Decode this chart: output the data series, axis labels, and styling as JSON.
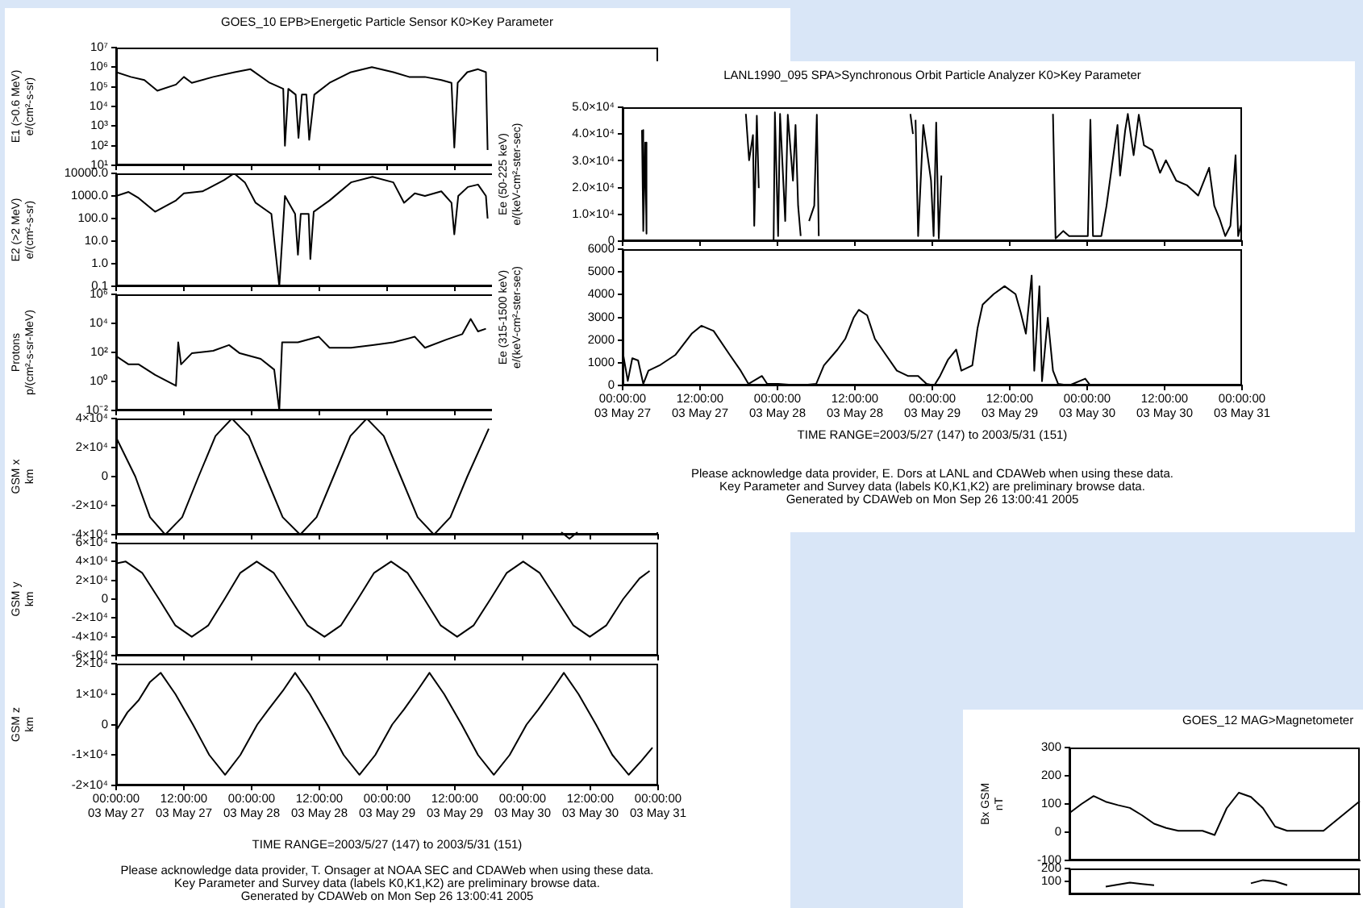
{
  "chart_data": [
    {
      "type": "line",
      "title": "GOES_10   EPB>Energetic Particle Sensor   K0>Key Parameter",
      "ylabel": "E1 (>0.6 MeV)\ne/(cm²-s-sr)",
      "log": "y",
      "tick_labels": "y",
      "xlim": [
        "2003-05-27T00:00",
        "2003-05-31T00:00"
      ],
      "xticks": [
        {
          "value": "2003-05-27T00:00",
          "label": null
        },
        {
          "value": "2003-05-27T12:00",
          "label": null
        },
        {
          "value": "2003-05-28T00:00",
          "label": null
        },
        {
          "value": "2003-05-28T12:00",
          "label": null
        },
        {
          "value": "2003-05-29T00:00",
          "label": null
        },
        {
          "value": "2003-05-29T12:00",
          "label": null
        },
        {
          "value": "2003-05-30T00:00",
          "label": null
        },
        {
          "value": "2003-05-30T12:00",
          "label": null
        },
        {
          "value": "2003-05-31T00:00",
          "label": null
        }
      ],
      "ylim": [
        10,
        10000000
      ],
      "yticks": [
        {
          "value": 10,
          "label": "10¹"
        },
        {
          "value": 100,
          "label": "10²"
        },
        {
          "value": 1000,
          "label": "10³"
        },
        {
          "value": 10000,
          "label": "10⁴"
        },
        {
          "value": 100000,
          "label": "10⁵"
        },
        {
          "value": 1000000,
          "label": "10⁶"
        },
        {
          "value": 10000000,
          "label": "10⁷"
        }
      ],
      "series": [
        {
          "color": "#000000",
          "x": [
            "2003-05-27T00:00",
            "2003-05-27T02:36",
            "2003-05-27T05:00",
            "2003-05-27T07:18",
            "2003-05-27T10:36",
            "2003-05-27T12:00",
            "2003-05-27T13:24",
            "2003-05-27T17:12",
            "2003-05-27T21:00",
            "2003-05-27T23:48",
            "2003-05-28T03:12",
            "2003-05-28T05:36",
            "2003-05-28T05:54",
            "2003-05-28T06:30",
            "2003-05-28T07:48",
            "2003-05-28T08:18",
            "2003-05-28T08:54",
            "2003-05-28T09:42",
            "2003-05-28T10:12",
            "2003-05-28T11:06",
            "2003-05-28T13:48",
            "2003-05-28T17:36",
            "2003-05-28T21:18",
            "2003-05-29T01:06",
            "2003-05-29T03:54",
            "2003-05-29T06:42",
            "2003-05-29T09:36",
            "2003-05-29T11:24",
            "2003-05-29T11:54",
            "2003-05-29T12:30",
            "2003-05-29T14:12",
            "2003-05-29T16:06",
            "2003-05-29T17:30",
            "2003-05-29T17:48"
          ],
          "values": [
            560000,
            320000,
            220000,
            63000,
            130000,
            320000,
            160000,
            320000,
            560000,
            790000,
            160000,
            79000,
            100,
            79000,
            40000,
            250,
            40000,
            40000,
            200,
            40000,
            160000,
            560000,
            1000000,
            560000,
            320000,
            320000,
            220000,
            160000,
            80,
            160000,
            560000,
            790000,
            560000,
            60
          ]
        }
      ]
    },
    {
      "type": "line",
      "ylabel": "E2 (>2 MeV)\ne/(cm²-s-sr)",
      "log": "y",
      "tick_labels": "y",
      "xlim": [
        "2003-05-27T00:00",
        "2003-05-31T00:00"
      ],
      "xticks": [
        {
          "value": "2003-05-27T00:00",
          "label": null
        },
        {
          "value": "2003-05-27T12:00",
          "label": null
        },
        {
          "value": "2003-05-28T00:00",
          "label": null
        },
        {
          "value": "2003-05-28T12:00",
          "label": null
        },
        {
          "value": "2003-05-29T00:00",
          "label": null
        },
        {
          "value": "2003-05-29T12:00",
          "label": null
        },
        {
          "value": "2003-05-30T00:00",
          "label": null
        },
        {
          "value": "2003-05-30T12:00",
          "label": null
        },
        {
          "value": "2003-05-31T00:00",
          "label": null
        }
      ],
      "ylim": [
        0.1,
        10000
      ],
      "yticks": [
        {
          "value": 0.1,
          "label": "0.1"
        },
        {
          "value": 1,
          "label": "1.0"
        },
        {
          "value": 10,
          "label": "10.0"
        },
        {
          "value": 100,
          "label": "100.0"
        },
        {
          "value": 1000,
          "label": "1000.0"
        },
        {
          "value": 10000,
          "label": "10000.0"
        }
      ],
      "series": [
        {
          "color": "#000000",
          "x": [
            "2003-05-27T00:00",
            "2003-05-27T02:12",
            "2003-05-27T04:00",
            "2003-05-27T06:54",
            "2003-05-27T10:36",
            "2003-05-27T12:00",
            "2003-05-27T15:18",
            "2003-05-27T19:06",
            "2003-05-27T20:54",
            "2003-05-27T22:48",
            "2003-05-28T00:42",
            "2003-05-28T03:30",
            "2003-05-28T04:54",
            "2003-05-28T05:54",
            "2003-05-28T07:42",
            "2003-05-28T08:12",
            "2003-05-28T08:42",
            "2003-05-28T10:06",
            "2003-05-28T10:24",
            "2003-05-28T11:00",
            "2003-05-28T13:48",
            "2003-05-28T17:36",
            "2003-05-28T21:24",
            "2003-05-29T01:06",
            "2003-05-29T03:00",
            "2003-05-29T04:54",
            "2003-05-29T06:42",
            "2003-05-29T09:36",
            "2003-05-29T11:24",
            "2003-05-29T11:54",
            "2003-05-29T12:36",
            "2003-05-29T14:18",
            "2003-05-29T16:06",
            "2003-05-29T17:30",
            "2003-05-29T17:48"
          ],
          "values": [
            1000,
            1500,
            800,
            200,
            630,
            1300,
            1600,
            5000,
            10000,
            4000,
            500,
            160,
            0.1,
            1000,
            160,
            2.5,
            160,
            160,
            1.6,
            200,
            630,
            4000,
            7000,
            4000,
            500,
            1300,
            1000,
            1600,
            500,
            20,
            1000,
            2500,
            3200,
            1000,
            100
          ]
        }
      ]
    },
    {
      "type": "line",
      "ylabel": "Protons\np/(cm²-s-sr-MeV)",
      "log": "y",
      "tick_labels": "y",
      "xlim": [
        "2003-05-27T00:00",
        "2003-05-31T00:00"
      ],
      "xticks": [
        {
          "value": "2003-05-27T00:00",
          "label": null
        },
        {
          "value": "2003-05-27T12:00",
          "label": null
        },
        {
          "value": "2003-05-28T00:00",
          "label": null
        },
        {
          "value": "2003-05-28T12:00",
          "label": null
        },
        {
          "value": "2003-05-29T00:00",
          "label": null
        },
        {
          "value": "2003-05-29T12:00",
          "label": null
        },
        {
          "value": "2003-05-30T00:00",
          "label": null
        },
        {
          "value": "2003-05-30T12:00",
          "label": null
        },
        {
          "value": "2003-05-31T00:00",
          "label": null
        }
      ],
      "ylim": [
        0.01,
        1000000
      ],
      "yticks": [
        {
          "value": 0.01,
          "label": "10⁻²"
        },
        {
          "value": 1,
          "label": "10⁰"
        },
        {
          "value": 100,
          "label": "10²"
        },
        {
          "value": 10000,
          "label": "10⁴"
        },
        {
          "value": 1000000,
          "label": "10⁶"
        }
      ],
      "series": [
        {
          "color": "#000000",
          "x": [
            "2003-05-27T00:00",
            "2003-05-27T02:12",
            "2003-05-27T04:00",
            "2003-05-27T06:54",
            "2003-05-27T10:36",
            "2003-05-27T11:00",
            "2003-05-27T11:30",
            "2003-05-27T13:24",
            "2003-05-27T17:12",
            "2003-05-27T20:00",
            "2003-05-27T21:54",
            "2003-05-28T01:36",
            "2003-05-28T04:00",
            "2003-05-28T04:54",
            "2003-05-28T05:24",
            "2003-05-28T08:12",
            "2003-05-28T11:54",
            "2003-05-28T13:48",
            "2003-05-28T17:36",
            "2003-05-28T21:24",
            "2003-05-29T01:06",
            "2003-05-29T04:54",
            "2003-05-29T06:42",
            "2003-05-29T10:30",
            "2003-05-29T13:18",
            "2003-05-29T14:48",
            "2003-05-29T16:06",
            "2003-05-29T17:30"
          ],
          "values": [
            56,
            15,
            15,
            2.8,
            0.5,
            490,
            15,
            87,
            130,
            320,
            87,
            36,
            6.5,
            0.01,
            490,
            490,
            1200,
            210,
            210,
            320,
            490,
            1200,
            210,
            760,
            1800,
            20000,
            2800,
            4300
          ]
        }
      ]
    },
    {
      "type": "line",
      "ylabel": "GSM x\nkm",
      "tick_labels": "y",
      "xlim": [
        "2003-05-27T00:00",
        "2003-05-31T00:00"
      ],
      "xticks": [
        {
          "value": "2003-05-27T00:00",
          "label": null
        },
        {
          "value": "2003-05-27T12:00",
          "label": null
        },
        {
          "value": "2003-05-28T00:00",
          "label": null
        },
        {
          "value": "2003-05-28T12:00",
          "label": null
        },
        {
          "value": "2003-05-29T00:00",
          "label": null
        },
        {
          "value": "2003-05-29T12:00",
          "label": null
        },
        {
          "value": "2003-05-30T00:00",
          "label": null
        },
        {
          "value": "2003-05-30T12:00",
          "label": null
        },
        {
          "value": "2003-05-31T00:00",
          "label": null
        }
      ],
      "ylim": [
        -40000,
        40000
      ],
      "yticks": [
        {
          "value": -40000,
          "label": "-4×10⁴"
        },
        {
          "value": -20000,
          "label": "-2×10⁴"
        },
        0,
        {
          "value": 20000,
          "label": "2×10⁴"
        },
        {
          "value": 40000,
          "label": "4×10⁴"
        }
      ],
      "series": [
        {
          "color": "#000000",
          "x": [
            "2003-05-27T00:00",
            "2003-05-27T03:24",
            "2003-05-27T06:00",
            "2003-05-27T08:42",
            "2003-05-27T11:42",
            "2003-05-27T14:36",
            "2003-05-27T17:36",
            "2003-05-27T20:30",
            "2003-05-27T23:30",
            "2003-05-28T02:30",
            "2003-05-28T05:30",
            "2003-05-28T08:36",
            "2003-05-28T11:30",
            "2003-05-28T14:30",
            "2003-05-28T17:30",
            "2003-05-28T20:24",
            "2003-05-28T23:24",
            "2003-05-29T02:24",
            "2003-05-29T05:24",
            "2003-05-29T08:18",
            "2003-05-29T11:12",
            "2003-05-29T14:12",
            "2003-05-29T18:00"
          ],
          "values": [
            27000,
            0,
            -28000,
            -40000,
            -28000,
            0,
            28000,
            40000,
            28000,
            0,
            -28000,
            -40000,
            -28000,
            0,
            28000,
            40000,
            28000,
            0,
            -28000,
            -40000,
            -28000,
            0,
            33000
          ]
        }
      ]
    },
    {
      "type": "line",
      "ylabel": "GSM y\nkm",
      "tick_labels": "y",
      "xlim": [
        "2003-05-27T00:00",
        "2003-05-31T00:00"
      ],
      "xticks": [
        {
          "value": "2003-05-27T00:00",
          "label": null
        },
        {
          "value": "2003-05-27T12:00",
          "label": null
        },
        {
          "value": "2003-05-28T00:00",
          "label": null
        },
        {
          "value": "2003-05-28T12:00",
          "label": null
        },
        {
          "value": "2003-05-29T00:00",
          "label": null
        },
        {
          "value": "2003-05-29T12:00",
          "label": null
        },
        {
          "value": "2003-05-30T00:00",
          "label": null
        },
        {
          "value": "2003-05-30T12:00",
          "label": null
        },
        {
          "value": "2003-05-31T00:00",
          "label": null
        }
      ],
      "ylim": [
        -60000,
        60000
      ],
      "yticks": [
        {
          "value": -60000,
          "label": "-6×10⁴"
        },
        {
          "value": -40000,
          "label": "-4×10⁴"
        },
        {
          "value": -20000,
          "label": "-2×10⁴"
        },
        0,
        {
          "value": 20000,
          "label": "2×10⁴"
        },
        {
          "value": 40000,
          "label": "4×10⁴"
        },
        {
          "value": 60000,
          "label": "6×10⁴"
        }
      ],
      "series": [
        {
          "color": "#000000",
          "x": [
            "2003-05-27T00:00",
            "2003-05-27T01:42",
            "2003-05-27T04:36",
            "2003-05-27T07:36",
            "2003-05-27T10:30",
            "2003-05-27T13:24",
            "2003-05-27T16:18",
            "2003-05-27T19:12",
            "2003-05-27T22:00",
            "2003-05-28T00:54",
            "2003-05-28T03:54",
            "2003-05-28T06:54",
            "2003-05-28T09:54",
            "2003-05-28T12:54",
            "2003-05-28T15:48",
            "2003-05-28T18:48",
            "2003-05-28T21:42",
            "2003-05-29T00:42",
            "2003-05-29T03:36",
            "2003-05-29T06:36",
            "2003-05-29T09:30",
            "2003-05-29T12:24",
            "2003-05-29T15:18",
            "2003-05-29T18:18",
            "2003-05-29T21:12",
            "2003-05-30T00:06",
            "2003-05-30T03:00",
            "2003-05-30T06:00",
            "2003-05-30T09:00",
            "2003-05-30T11:54",
            "2003-05-30T14:48",
            "2003-05-30T17:48",
            "2003-05-30T20:42",
            "2003-05-30T22:30"
          ],
          "values": [
            38000,
            40000,
            28000,
            0,
            -28000,
            -40000,
            -28000,
            0,
            28000,
            40000,
            28000,
            0,
            -28000,
            -40000,
            -28000,
            0,
            28000,
            40000,
            28000,
            0,
            -28000,
            -40000,
            -28000,
            0,
            28000,
            40000,
            28000,
            0,
            -28000,
            -40000,
            -28000,
            0,
            22000,
            30000
          ]
        }
      ]
    },
    {
      "type": "line",
      "ylabel": "GSM z\nkm",
      "xlim": [
        "2003-05-27T00:00",
        "2003-05-31T00:00"
      ],
      "xticks": [
        {
          "value": "2003-05-27T00:00",
          "label": "00:00:00\n03 May 27"
        },
        {
          "value": "2003-05-27T12:00",
          "label": "12:00:00\n03 May 27"
        },
        {
          "value": "2003-05-28T00:00",
          "label": "00:00:00\n03 May 28"
        },
        {
          "value": "2003-05-28T12:00",
          "label": "12:00:00\n03 May 28"
        },
        {
          "value": "2003-05-29T00:00",
          "label": "00:00:00\n03 May 29"
        },
        {
          "value": "2003-05-29T12:00",
          "label": "12:00:00\n03 May 29"
        },
        {
          "value": "2003-05-30T00:00",
          "label": "00:00:00\n03 May 30"
        },
        {
          "value": "2003-05-30T12:00",
          "label": "12:00:00\n03 May 30"
        },
        {
          "value": "2003-05-31T00:00",
          "label": "00:00:00\n03 May 31"
        }
      ],
      "ylim": [
        -20000,
        20000
      ],
      "yticks": [
        {
          "value": -20000,
          "label": "-2×10⁴"
        },
        {
          "value": -10000,
          "label": "-1×10⁴"
        },
        0,
        {
          "value": 10000,
          "label": "1×10⁴"
        },
        {
          "value": 20000,
          "label": "2×10⁴"
        }
      ],
      "annotations": [
        "TIME RANGE=2003/5/27 (147) to 2003/5/31 (151)",
        "Please acknowledge data provider, T. Onsager at NOAA SEC and CDAWeb when using these data.",
        "Key Parameter and Survey data (labels K0,K1,K2) are preliminary browse data.",
        "Generated by CDAWeb on Mon Sep 26 13:00:41 2005"
      ],
      "series": [
        {
          "color": "#000000",
          "x": [
            "2003-05-27T00:00",
            "2003-05-27T02:00",
            "2003-05-27T04:00",
            "2003-05-27T06:00",
            "2003-05-27T07:54",
            "2003-05-27T10:30",
            "2003-05-27T13:36",
            "2003-05-27T16:30",
            "2003-05-27T19:18",
            "2003-05-27T22:00",
            "2003-05-28T01:00",
            "2003-05-28T03:00",
            "2003-05-28T05:30",
            "2003-05-28T07:42",
            "2003-05-28T10:18",
            "2003-05-28T13:24",
            "2003-05-28T16:18",
            "2003-05-28T19:06",
            "2003-05-28T21:54",
            "2003-05-29T00:54",
            "2003-05-29T03:00",
            "2003-05-29T05:18",
            "2003-05-29T07:30",
            "2003-05-29T10:06",
            "2003-05-29T13:12",
            "2003-05-29T16:06",
            "2003-05-29T18:54",
            "2003-05-29T21:42",
            "2003-05-30T00:42",
            "2003-05-30T02:48",
            "2003-05-30T05:06",
            "2003-05-30T07:18",
            "2003-05-30T09:54",
            "2003-05-30T13:00",
            "2003-05-30T15:54",
            "2003-05-30T18:48",
            "2003-05-30T21:00",
            "2003-05-30T23:00"
          ],
          "values": [
            -2000,
            4000,
            8000,
            14000,
            17000,
            10000,
            0,
            -10000,
            -16500,
            -10000,
            0,
            5000,
            11000,
            17000,
            10000,
            0,
            -10000,
            -16500,
            -10000,
            0,
            5000,
            11000,
            17000,
            10000,
            0,
            -10000,
            -16500,
            -10000,
            0,
            5000,
            11000,
            17000,
            10000,
            0,
            -10000,
            -16500,
            -12000,
            -7600
          ]
        }
      ]
    },
    {
      "type": "line",
      "title": "LANL1990_095   SPA>Synchronous Orbit Particle Analyzer   K0>Key Parameter",
      "ylabel": "Ee (50-225 keV)\ne/(keV-cm²-ster-sec)",
      "tick_labels": "y",
      "xlim": [
        "2003-05-27T00:00",
        "2003-05-31T00:00"
      ],
      "xticks": [
        {
          "value": "2003-05-27T00:00",
          "label": null
        },
        {
          "value": "2003-05-27T12:00",
          "label": null
        },
        {
          "value": "2003-05-28T00:00",
          "label": null
        },
        {
          "value": "2003-05-28T12:00",
          "label": null
        },
        {
          "value": "2003-05-29T00:00",
          "label": null
        },
        {
          "value": "2003-05-29T12:00",
          "label": null
        },
        {
          "value": "2003-05-30T00:00",
          "label": null
        },
        {
          "value": "2003-05-30T12:00",
          "label": null
        },
        {
          "value": "2003-05-31T00:00",
          "label": null
        }
      ],
      "ylim": [
        0,
        50000
      ],
      "yticks": [
        0,
        {
          "value": 10000,
          "label": "1.0×10⁴"
        },
        {
          "value": 20000,
          "label": "2.0×10⁴"
        },
        {
          "value": 30000,
          "label": "3.0×10⁴"
        },
        {
          "value": 40000,
          "label": "4.0×10⁴"
        },
        {
          "value": 50000,
          "label": "5.0×10⁴"
        }
      ],
      "series": [
        {
          "color": "#000000",
          "x": [
            "2003-05-27T03:00",
            "2003-05-27T03:12",
            "2003-05-27T03:30",
            "2003-05-27T03:42",
            "2003-05-27T10:00",
            "2003-05-27T19:06",
            "2003-05-27T19:36",
            "2003-05-27T20:12",
            "2003-05-27T20:24",
            "2003-05-27T20:48",
            "2003-05-27T21:06",
            "2003-05-27T22:00",
            "2003-05-27T23:24",
            "2003-05-27T23:36",
            "2003-05-28T00:06",
            "2003-05-28T00:24",
            "2003-05-28T01:12",
            "2003-05-28T01:36",
            "2003-05-28T02:24",
            "2003-05-28T02:48",
            "2003-05-28T03:12",
            "2003-05-28T03:36",
            "2003-05-28T04:12",
            "2003-05-28T04:54",
            "2003-05-28T05:42",
            "2003-05-28T06:06",
            "2003-05-28T06:24",
            "2003-05-28T11:00",
            "2003-05-28T20:36",
            "2003-05-28T21:00",
            "2003-05-28T21:12",
            "2003-05-28T21:24",
            "2003-05-28T21:48",
            "2003-05-28T22:36",
            "2003-05-28T23:48",
            "2003-05-29T00:12",
            "2003-05-29T00:36",
            "2003-05-29T01:00",
            "2003-05-29T01:24",
            "2003-05-29T07:00",
            "2003-05-29T18:42",
            "2003-05-29T19:06",
            "2003-05-29T20:18",
            "2003-05-29T21:12",
            "2003-05-30T00:06",
            "2003-05-30T00:30",
            "2003-05-30T00:54",
            "2003-05-30T02:12",
            "2003-05-30T03:00",
            "2003-05-30T03:48",
            "2003-05-30T04:42",
            "2003-05-30T05:06",
            "2003-05-30T05:54",
            "2003-05-30T06:18",
            "2003-05-30T07:12",
            "2003-05-30T08:00",
            "2003-05-30T08:48",
            "2003-05-30T10:06",
            "2003-05-30T11:18",
            "2003-05-30T12:12",
            "2003-05-30T13:48",
            "2003-05-30T15:30",
            "2003-05-30T17:12",
            "2003-05-30T18:54",
            "2003-05-30T19:42",
            "2003-05-30T20:30",
            "2003-05-30T21:24",
            "2003-05-30T22:12",
            "2003-05-30T23:00",
            "2003-05-30T23:24",
            "2003-05-31T00:00"
          ],
          "values": [
            41500,
            3800,
            36800,
            2800,
            null,
            47500,
            30200,
            39600,
            5700,
            46800,
            19800,
            null,
            0,
            48100,
            1900,
            47500,
            7500,
            47200,
            22600,
            43400,
            13200,
            1900,
            null,
            7500,
            13200,
            47200,
            1900,
            null,
            47500,
            40000,
            null,
            45300,
            1900,
            43400,
            22600,
            1900,
            44300,
            1000,
            24500,
            null,
            47500,
            1000,
            3800,
            1900,
            1900,
            45300,
            1900,
            1900,
            13200,
            27400,
            43400,
            24500,
            41500,
            47500,
            32100,
            47200,
            35800,
            34000,
            25500,
            30200,
            22600,
            20800,
            17000,
            27400,
            13200,
            8500,
            1900,
            5700,
            32100,
            1900,
            7500
          ]
        }
      ]
    },
    {
      "type": "line",
      "ylabel": "Ee (315-1500 keV)\ne/(keV-cm²-ster-sec)",
      "xlim": [
        "2003-05-27T00:00",
        "2003-05-31T00:00"
      ],
      "xticks": [
        {
          "value": "2003-05-27T00:00",
          "label": "00:00:00\n03 May 27"
        },
        {
          "value": "2003-05-27T12:00",
          "label": "12:00:00\n03 May 27"
        },
        {
          "value": "2003-05-28T00:00",
          "label": "00:00:00\n03 May 28"
        },
        {
          "value": "2003-05-28T12:00",
          "label": "12:00:00\n03 May 28"
        },
        {
          "value": "2003-05-29T00:00",
          "label": "00:00:00\n03 May 29"
        },
        {
          "value": "2003-05-29T12:00",
          "label": "12:00:00\n03 May 29"
        },
        {
          "value": "2003-05-30T00:00",
          "label": "00:00:00\n03 May 30"
        },
        {
          "value": "2003-05-30T12:00",
          "label": "12:00:00\n03 May 30"
        },
        {
          "value": "2003-05-31T00:00",
          "label": "00:00:00\n03 May 31"
        }
      ],
      "ylim": [
        0,
        6000
      ],
      "yticks": [
        0,
        1000,
        2000,
        3000,
        4000,
        5000,
        6000
      ],
      "annotations": [
        "TIME RANGE=2003/5/27 (147) to 2003/5/31 (151)",
        "Please acknowledge data provider, E. Dors at LANL and CDAWeb when using these data.",
        "Key Parameter and Survey data (labels K0,K1,K2) are preliminary browse data.",
        "Generated by CDAWeb on Mon Sep 26 13:00:41 2005"
      ],
      "series": [
        {
          "color": "#000000",
          "x": [
            "2003-05-27T00:00",
            "2003-05-27T00:48",
            "2003-05-27T01:30",
            "2003-05-27T02:24",
            "2003-05-27T03:12",
            "2003-05-27T04:00",
            "2003-05-27T05:42",
            "2003-05-27T08:12",
            "2003-05-27T10:42",
            "2003-05-27T12:12",
            "2003-05-27T14:06",
            "2003-05-27T16:36",
            "2003-05-27T18:18",
            "2003-05-27T19:30",
            "2003-05-27T21:36",
            "2003-05-27T22:24",
            "2003-05-28T00:06",
            "2003-05-28T03:24",
            "2003-05-28T06:00",
            "2003-05-28T07:12",
            "2003-05-28T09:18",
            "2003-05-28T10:30",
            "2003-05-28T11:48",
            "2003-05-28T12:36",
            "2003-05-28T13:54",
            "2003-05-28T15:06",
            "2003-05-28T16:48",
            "2003-05-28T18:30",
            "2003-05-28T20:12",
            "2003-05-28T21:48",
            "2003-05-28T23:06",
            "2003-05-29T00:18",
            "2003-05-29T01:12",
            "2003-05-29T02:24",
            "2003-05-29T03:42",
            "2003-05-29T04:30",
            "2003-05-29T06:12",
            "2003-05-29T07:00",
            "2003-05-29T07:48",
            "2003-05-29T09:30",
            "2003-05-29T11:12",
            "2003-05-29T12:54",
            "2003-05-29T13:42",
            "2003-05-29T14:30",
            "2003-05-29T15:24",
            "2003-05-29T15:48",
            "2003-05-29T16:36",
            "2003-05-29T17:00",
            "2003-05-29T17:54",
            "2003-05-29T18:42",
            "2003-05-29T19:30",
            "2003-05-29T21:12",
            "2003-05-29T23:42",
            "2003-05-30T00:30",
            "2003-05-31T00:00"
          ],
          "values": [
            1500,
            200,
            1200,
            1100,
            70,
            650,
            880,
            1350,
            2280,
            2630,
            2400,
            1350,
            650,
            70,
            420,
            70,
            70,
            0,
            70,
            880,
            1580,
            2050,
            2980,
            3330,
            3090,
            2050,
            1350,
            650,
            420,
            420,
            70,
            0,
            420,
            1120,
            1580,
            650,
            880,
            2510,
            3560,
            4020,
            4370,
            4020,
            3210,
            2280,
            4840,
            650,
            4370,
            190,
            2980,
            650,
            70,
            0,
            300,
            0,
            0
          ]
        }
      ]
    },
    {
      "type": "line",
      "title": "GOES_12   MAG>Magnetometer",
      "ylabel": "Bx GSM\nnT",
      "tick_labels": "y",
      "categories": [
        null,
        null,
        null,
        null,
        null,
        null,
        null,
        null,
        null,
        null,
        null,
        null,
        null,
        null,
        null,
        null,
        null,
        null,
        null,
        null,
        null,
        null,
        null,
        null,
        null
      ],
      "ylim": [
        -100,
        300
      ],
      "yticks": [
        -100,
        0,
        100,
        200,
        300
      ],
      "series": [
        {
          "color": "#000000",
          "values": [
            68,
            100,
            128,
            108,
            96,
            86,
            60,
            30,
            15,
            5,
            5,
            5,
            -10,
            85,
            140,
            125,
            85,
            20,
            5,
            5,
            5,
            5,
            40,
            75,
            110
          ]
        }
      ]
    },
    {
      "type": "line",
      "tick_labels": "y",
      "categories": [
        null,
        null,
        null,
        null,
        null,
        null,
        null,
        null,
        null,
        null,
        null,
        null,
        null,
        null,
        null,
        null,
        null,
        null,
        null,
        null,
        null,
        null,
        null,
        null,
        null
      ],
      "ylim": [
        0,
        200
      ],
      "yticks": [
        100,
        200
      ],
      "series": [
        {
          "color": "#000000",
          "values": [
            null,
            null,
            null,
            60,
            75,
            90,
            80,
            70,
            null,
            null,
            null,
            null,
            null,
            null,
            null,
            85,
            110,
            100,
            70,
            null,
            null,
            null,
            null,
            null,
            null
          ]
        }
      ]
    }
  ]
}
